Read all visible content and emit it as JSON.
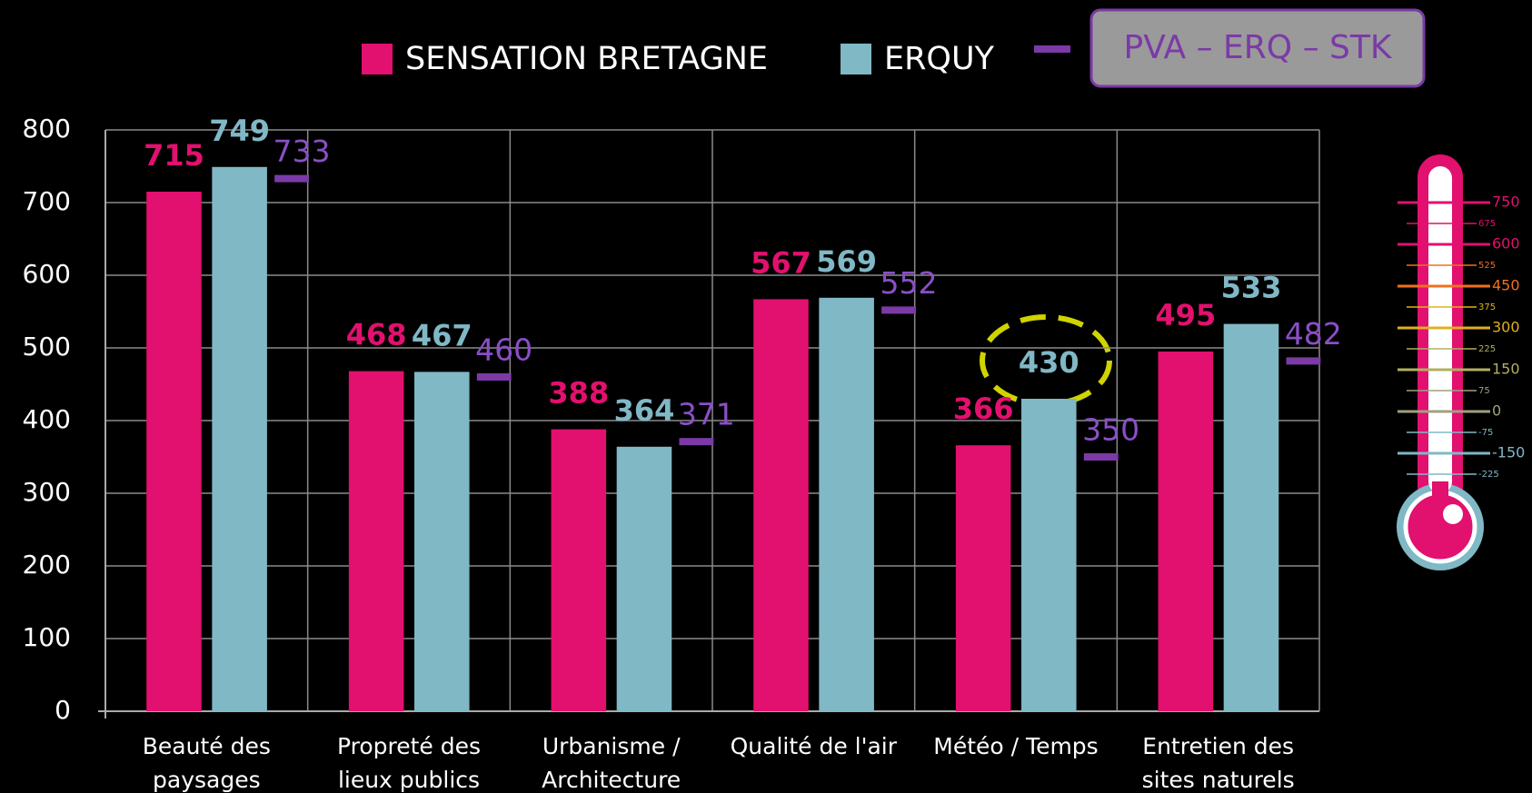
{
  "chart_data": {
    "type": "bar",
    "categories": [
      "Beauté des paysages",
      "Propreté des lieux publics",
      "Urbanisme / Architecture",
      "Qualité de l'air",
      "Météo / Temps",
      "Entretien des sites naturels"
    ],
    "series": [
      {
        "name": "SENSATION BRETAGNE",
        "color": "#e2106f",
        "values": [
          715,
          468,
          388,
          567,
          366,
          495
        ]
      },
      {
        "name": "ERQUY",
        "color": "#80b8c6",
        "values": [
          749,
          467,
          364,
          569,
          430,
          533
        ]
      },
      {
        "name": "PVA – ERQ – STK",
        "color": "#7b3aa6",
        "marker": "dash",
        "values": [
          733,
          460,
          371,
          552,
          350,
          482
        ]
      }
    ],
    "ylim": [
      0,
      800
    ],
    "yticks": [
      0,
      100,
      200,
      300,
      400,
      500,
      600,
      700,
      800
    ],
    "grid": true,
    "thermometer": {
      "major": [
        750,
        600,
        450,
        300,
        150,
        0,
        -150
      ],
      "minor": [
        675,
        525,
        375,
        225,
        75,
        -75,
        -225
      ]
    }
  }
}
